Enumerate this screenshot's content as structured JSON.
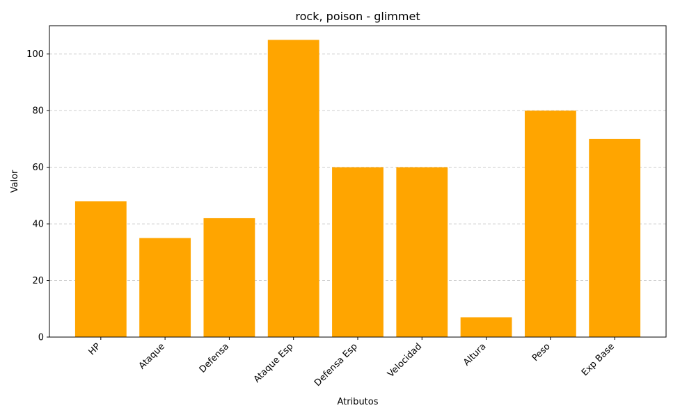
{
  "chart_data": {
    "type": "bar",
    "title": "rock, poison - glimmet",
    "xlabel": "Atributos",
    "ylabel": "Valor",
    "categories": [
      "HP",
      "Ataque",
      "Defensa",
      "Ataque Esp",
      "Defensa Esp",
      "Velocidad",
      "Altura",
      "Peso",
      "Exp Base"
    ],
    "values": [
      48,
      35,
      42,
      105,
      60,
      60,
      7,
      80,
      70
    ],
    "ylim": [
      0,
      110
    ],
    "yticks": [
      0,
      20,
      40,
      60,
      80,
      100
    ],
    "grid": "y-dashed",
    "bar_color": "#ffa500",
    "grid_color": "#cccccc",
    "xtick_rotation": "45 degrees"
  }
}
